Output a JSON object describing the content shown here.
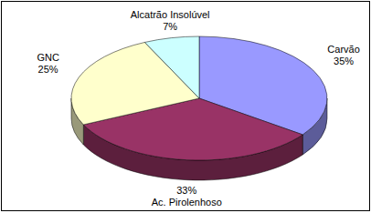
{
  "chart_data": {
    "type": "pie",
    "categories": [
      "Carvão",
      "Ac. Pirolenhoso",
      "GNC",
      "Alcatrão Insolúvel"
    ],
    "values": [
      35,
      33,
      25,
      7
    ],
    "value_labels": [
      "35%",
      "33%",
      "25%",
      "7%"
    ],
    "colors": [
      "#9999ff",
      "#993366",
      "#ffffcc",
      "#ccffff"
    ],
    "data_labels": true
  }
}
